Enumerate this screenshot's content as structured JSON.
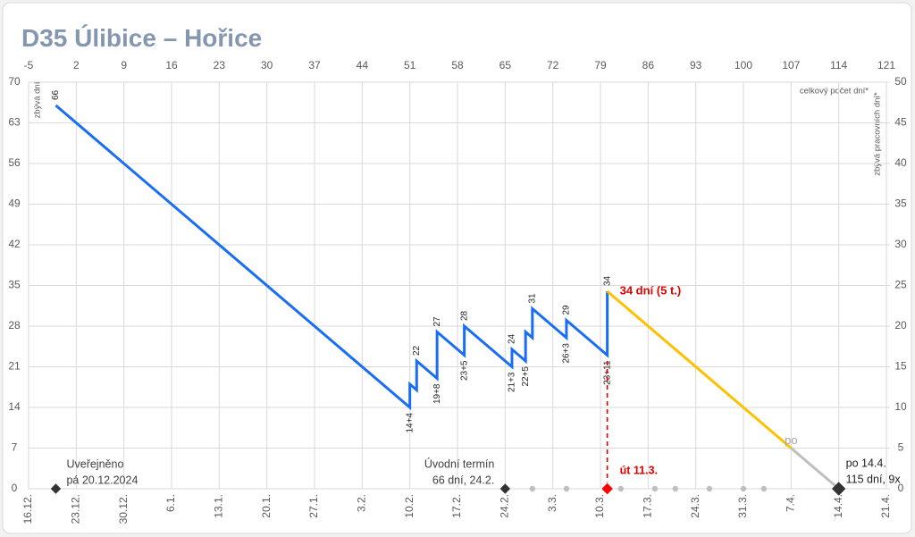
{
  "chart_data": {
    "type": "line",
    "title": "D35 Úlibice – Hořice",
    "ylabel": "zbývá dní",
    "y2label": "zbývá pracovních dní*",
    "x2label": "celkový počet dní*",
    "xlim": [
      -5,
      121
    ],
    "xticks": [
      -5,
      2,
      9,
      16,
      23,
      30,
      37,
      44,
      51,
      58,
      65,
      72,
      79,
      86,
      93,
      100,
      107,
      114,
      121
    ],
    "date_labels": [
      "16.12.",
      "23.12.",
      "30.12.",
      "6.1.",
      "13.1.",
      "20.1.",
      "27.1.",
      "3.2.",
      "10.2.",
      "17.2.",
      "24.2.",
      "3.3.",
      "10.3.",
      "17.3.",
      "24.3.",
      "31.3.",
      "7.4.",
      "14.4.",
      "21.4."
    ],
    "ylim": [
      0,
      70
    ],
    "yticks": [
      0,
      7,
      14,
      21,
      28,
      35,
      42,
      49,
      56,
      63,
      70
    ],
    "y2lim": [
      0,
      50
    ],
    "y2ticks": [
      0,
      5,
      10,
      15,
      20,
      25,
      30,
      35,
      40,
      45,
      50
    ],
    "grid": true,
    "series": [
      {
        "color": "#1a6ef5",
        "x": [
          -1,
          51,
          51,
          52,
          52,
          55,
          55,
          59,
          59,
          66,
          66,
          68,
          68,
          69,
          69,
          74,
          74,
          80,
          80
        ],
        "values": [
          66,
          14,
          18,
          17,
          22,
          19,
          27,
          23,
          28,
          21,
          24,
          22,
          27,
          26,
          31,
          26,
          29,
          23,
          34
        ],
        "value_labels": [
          "66",
          "14+4",
          null,
          null,
          "22",
          "19+8",
          "27",
          "23+5",
          "28",
          "21+3",
          "24",
          "22+5",
          null,
          null,
          "31",
          "26+3",
          "29",
          "23+11",
          "34"
        ]
      },
      {
        "color": "#ffc000",
        "x": [
          80,
          107
        ],
        "values": [
          34,
          7
        ],
        "label": "34 dní (5 t.)",
        "label_color": "#e00000"
      },
      {
        "color": "#bfbfbf",
        "x": [
          107,
          114
        ],
        "values": [
          7,
          0
        ],
        "label": "po",
        "label_color": "#a6a6a6"
      },
      {
        "color": "#e00000",
        "dashed": true,
        "x": [
          80,
          80
        ],
        "values": [
          22,
          0
        ]
      }
    ],
    "dots": {
      "color": "#bfbfbf",
      "x": [
        69,
        74,
        82,
        87,
        90,
        95,
        100,
        103
      ],
      "values": [
        0,
        0,
        0,
        0,
        0,
        0,
        0,
        0
      ]
    },
    "markers": [
      {
        "x": -1,
        "y": 0,
        "color": "#333333",
        "label": [
          "Uveřejněno",
          "pá 20.12.2024"
        ],
        "label_color": "#404040"
      },
      {
        "x": 65,
        "y": 0,
        "color": "#333333",
        "label": [
          "Úvodní termín",
          "66 dní, 24.2."
        ],
        "label_color": "#404040"
      },
      {
        "x": 80,
        "y": 0,
        "color": "#ff0000",
        "label": [
          "út 11.3."
        ],
        "label_color": "#e00000"
      },
      {
        "x": 114,
        "y": 0,
        "color": "#333333",
        "label": [
          "po 14.4.",
          "115 dní, 9x"
        ],
        "label_color": "#222222"
      }
    ]
  }
}
